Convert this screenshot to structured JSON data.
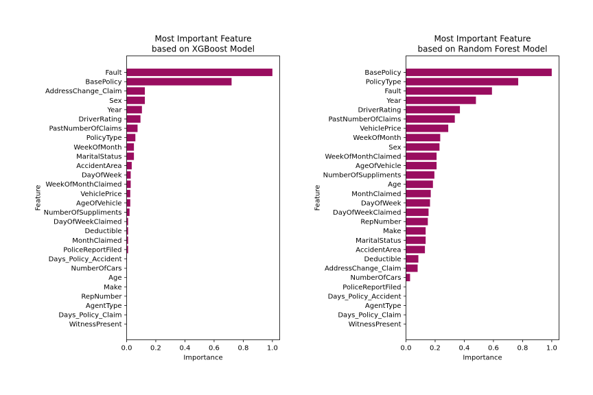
{
  "colors": {
    "bar": "#990d5f",
    "axis": "#000000",
    "background": "#ffffff"
  },
  "chart_data": [
    {
      "type": "bar",
      "orientation": "horizontal",
      "title": [
        "Most Important Feature",
        "based on XGBoost Model"
      ],
      "xlabel": "Importance",
      "ylabel": "Feature",
      "xlim": [
        0,
        1.05
      ],
      "xticks": [
        "0.0",
        "0.2",
        "0.4",
        "0.6",
        "0.8",
        "1.0"
      ],
      "grid": false,
      "categories": [
        "Fault",
        "BasePolicy",
        "AddressChange_Claim",
        "Sex",
        "Year",
        "DriverRating",
        "PastNumberOfClaims",
        "PolicyType",
        "WeekOfMonth",
        "MaritalStatus",
        "AccidentArea",
        "DayOfWeek",
        "WeekOfMonthClaimed",
        "VehiclePrice",
        "AgeOfVehicle",
        "NumberOfSuppliments",
        "DayOfWeekClaimed",
        "Deductible",
        "MonthClaimed",
        "PoliceReportFiled",
        "Days_Policy_Accident",
        "NumberOfCars",
        "Age",
        "Make",
        "RepNumber",
        "AgentType",
        "Days_Policy_Claim",
        "WitnessPresent"
      ],
      "values": [
        1.0,
        0.72,
        0.125,
        0.125,
        0.105,
        0.095,
        0.075,
        0.06,
        0.05,
        0.05,
        0.035,
        0.028,
        0.028,
        0.025,
        0.025,
        0.02,
        0.01,
        0.01,
        0.01,
        0.01,
        0.002,
        0.0,
        0.0,
        0.0,
        0.0,
        0.0,
        0.0,
        0.0
      ]
    },
    {
      "type": "bar",
      "orientation": "horizontal",
      "title": [
        "Most Important Feature",
        "based on Random Forest Model"
      ],
      "xlabel": "Importance",
      "ylabel": "Feature",
      "xlim": [
        0,
        1.05
      ],
      "xticks": [
        "0.0",
        "0.2",
        "0.4",
        "0.6",
        "0.8",
        "1.0"
      ],
      "grid": false,
      "categories": [
        "BasePolicy",
        "PolicyType",
        "Fault",
        "Year",
        "DriverRating",
        "PastNumberOfClaims",
        "VehiclePrice",
        "WeekOfMonth",
        "Sex",
        "WeekOfMonthClaimed",
        "AgeOfVehicle",
        "NumberOfSuppliments",
        "Age",
        "MonthClaimed",
        "DayOfWeek",
        "DayOfWeekClaimed",
        "RepNumber",
        "Make",
        "MaritalStatus",
        "AccidentArea",
        "Deductible",
        "AddressChange_Claim",
        "NumberOfCars",
        "PoliceReportFiled",
        "Days_Policy_Accident",
        "AgentType",
        "Days_Policy_Claim",
        "WitnessPresent"
      ],
      "values": [
        1.0,
        0.77,
        0.59,
        0.48,
        0.37,
        0.335,
        0.29,
        0.235,
        0.23,
        0.21,
        0.21,
        0.195,
        0.185,
        0.17,
        0.165,
        0.155,
        0.15,
        0.135,
        0.135,
        0.13,
        0.085,
        0.08,
        0.028,
        0.0,
        0.0,
        0.0,
        0.0,
        0.0
      ]
    }
  ]
}
